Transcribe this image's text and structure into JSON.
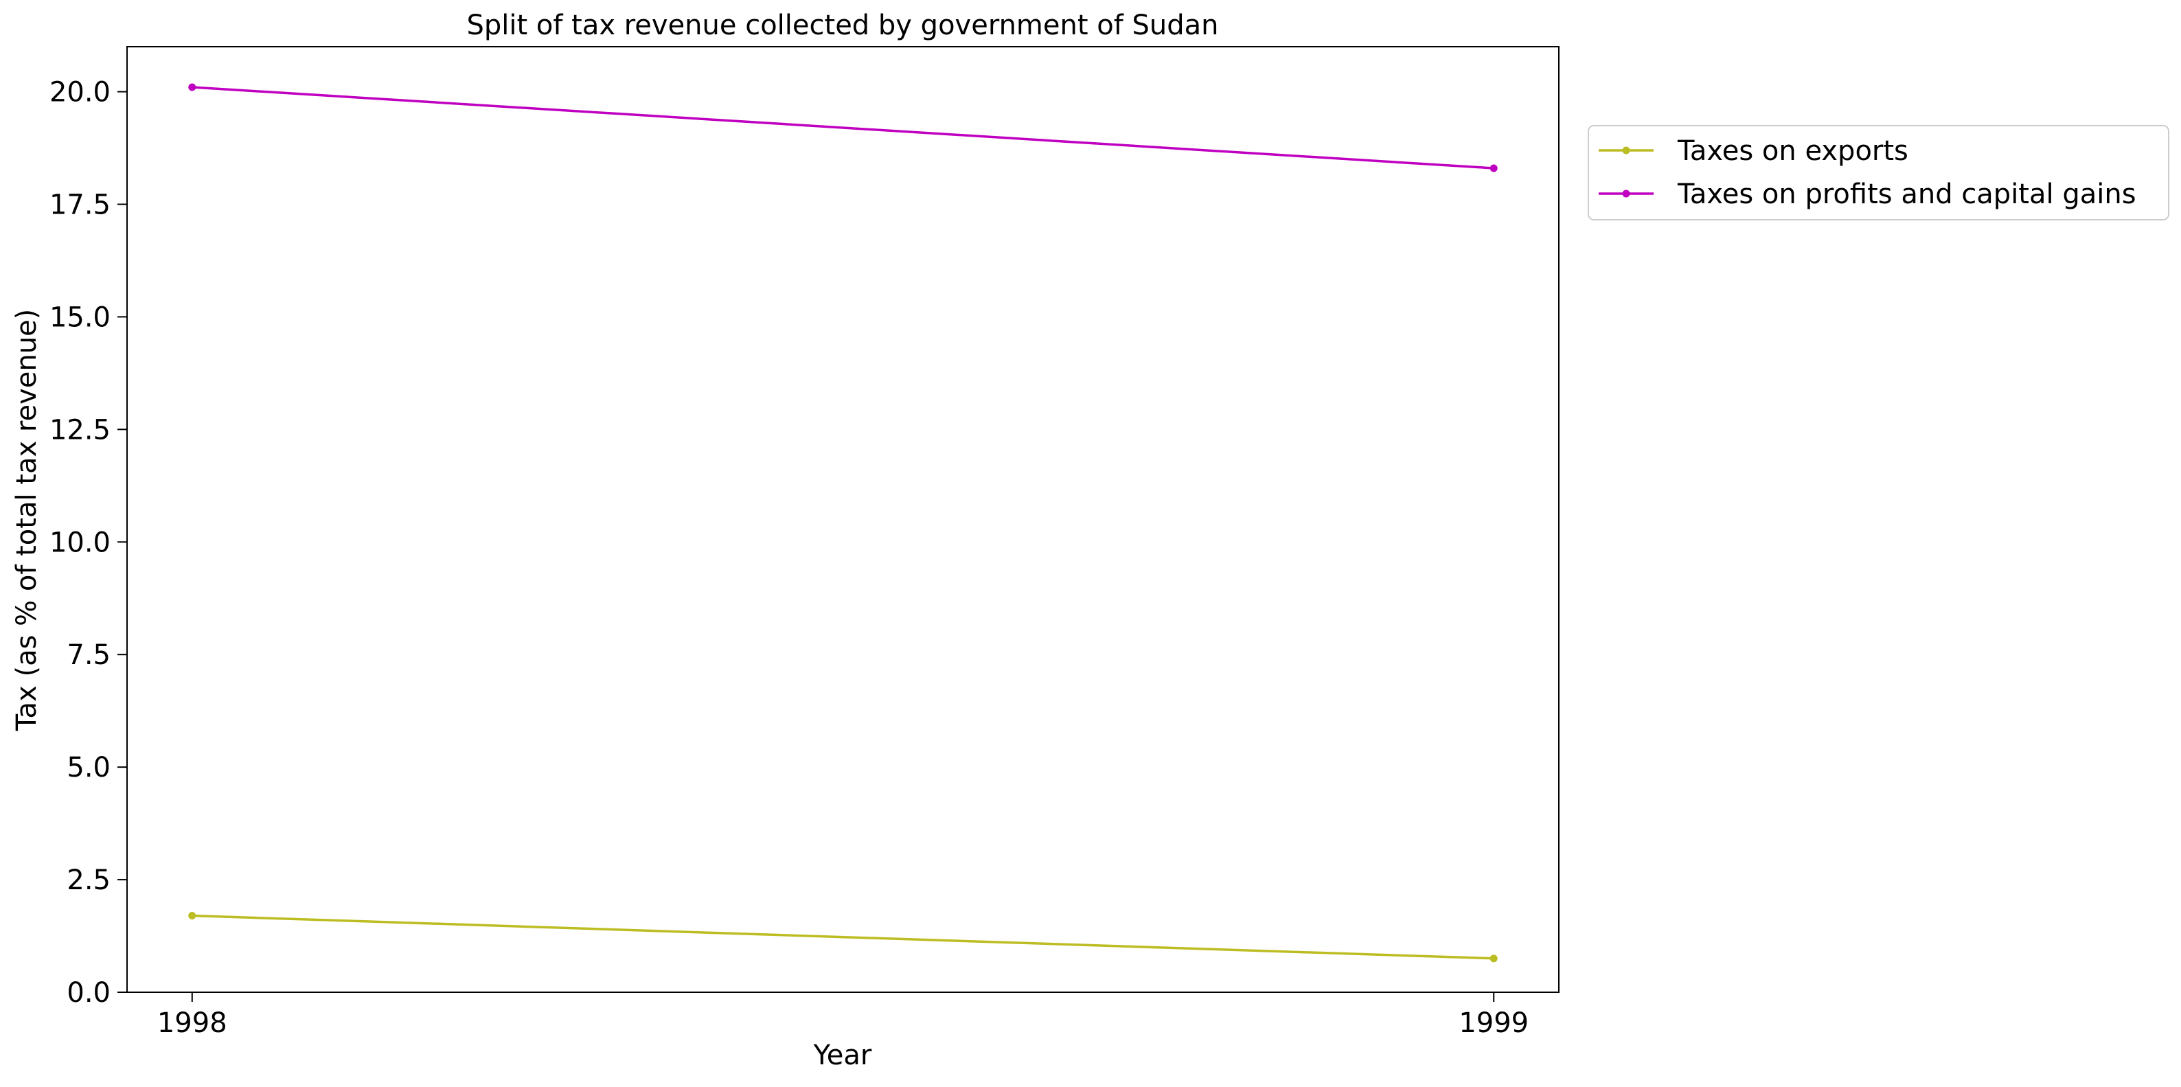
{
  "chart_data": {
    "type": "line",
    "title": "Split of tax revenue collected by government of Sudan",
    "xlabel": "Year",
    "ylabel": "Tax (as % of total tax revenue)",
    "x": [
      "1998",
      "1999"
    ],
    "xlim": [
      1997.95,
      1999.05
    ],
    "ylim": [
      0,
      21
    ],
    "yticks": [
      0.0,
      2.5,
      5.0,
      7.5,
      10.0,
      12.5,
      15.0,
      17.5,
      20.0
    ],
    "ytick_labels": [
      "0.0",
      "2.5",
      "5.0",
      "7.5",
      "10.0",
      "12.5",
      "15.0",
      "17.5",
      "20.0"
    ],
    "grid": false,
    "legend_position": "outside-right-top",
    "series": [
      {
        "name": "Taxes on exports",
        "color": "#bcbd22",
        "values": [
          1.7,
          0.75
        ]
      },
      {
        "name": "Taxes on profits and capital gains",
        "color": "#c000c0",
        "values": [
          20.1,
          18.3
        ]
      }
    ]
  }
}
